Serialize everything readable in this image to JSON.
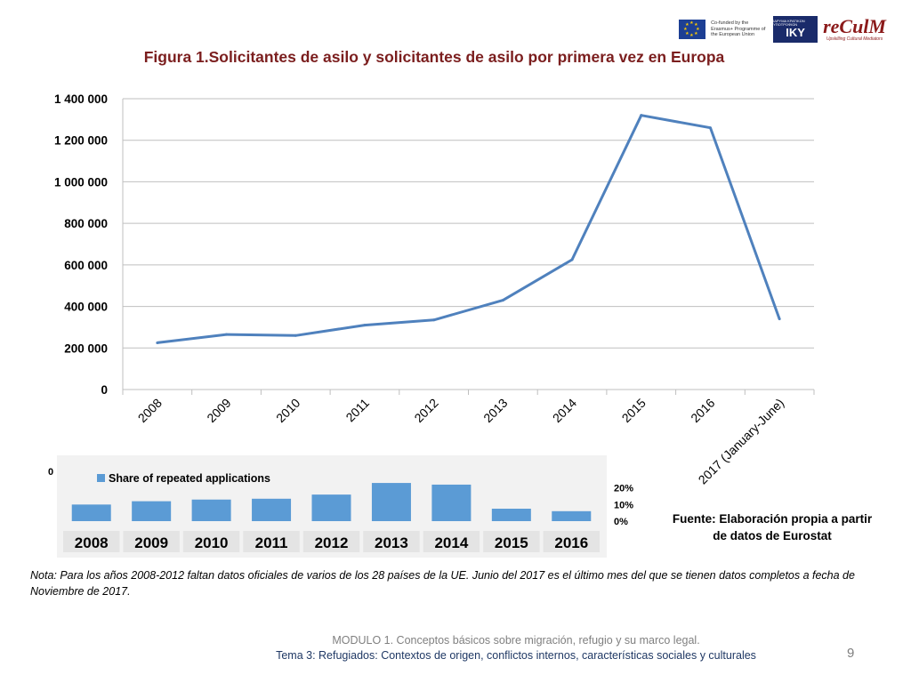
{
  "logos": {
    "eu_text": "Co-funded by the Erasmus+ Programme of the European Union",
    "iky_small": "ΙΔΡΥΜΑ ΚΡΑΤΙΚΩΝ ΥΠΟΤΡΟΦΙΩΝ",
    "iky_big": "IKY",
    "reculm_name": "reCulM",
    "reculm_sub": "Upskilling Cultural Mediators"
  },
  "title": "Figura 1.Solicitantes de asilo y solicitantes de asilo por primera vez en Europa",
  "chart_data": [
    {
      "type": "line",
      "title": "",
      "categories": [
        "2008",
        "2009",
        "2010",
        "2011",
        "2012",
        "2013",
        "2014",
        "2015",
        "2016",
        "2017 (January-June)"
      ],
      "values": [
        225000,
        265000,
        260000,
        310000,
        335000,
        430000,
        625000,
        1320000,
        1260000,
        340000
      ],
      "ylim": [
        0,
        1400000
      ],
      "yticks": [
        "0",
        "200 000",
        "400 000",
        "600 000",
        "800 000",
        "1 000 000",
        "1 200 000",
        "1 400 000"
      ],
      "color": "#4f81bd",
      "grid": true
    },
    {
      "type": "bar",
      "legend": "Share of repeated applications",
      "categories": [
        "2008",
        "2009",
        "2010",
        "2011",
        "2012",
        "2013",
        "2014",
        "2015",
        "2016"
      ],
      "values": [
        0.1,
        0.12,
        0.13,
        0.135,
        0.16,
        0.23,
        0.22,
        0.075,
        0.06
      ],
      "ylim": [
        0,
        0.3
      ],
      "yticks": [
        "0%",
        "10%",
        "20%"
      ],
      "left_label": "0",
      "color": "#5b9bd5"
    }
  ],
  "source": "Fuente: Elaboración propia a partir de datos de Eurostat",
  "note": "Nota: Para los años 2008-2012 faltan datos oficiales de varios de los 28 países de la UE. Junio del 2017 es el último mes del que se tienen datos completos a fecha de Noviembre de 2017.",
  "footer": {
    "line1": "MODULO 1. Conceptos básicos sobre migración, refugio y su marco legal.",
    "line2": "Tema 3: Refugiados: Contextos de origen, conflictos internos, características sociales y culturales"
  },
  "page_number": "9"
}
